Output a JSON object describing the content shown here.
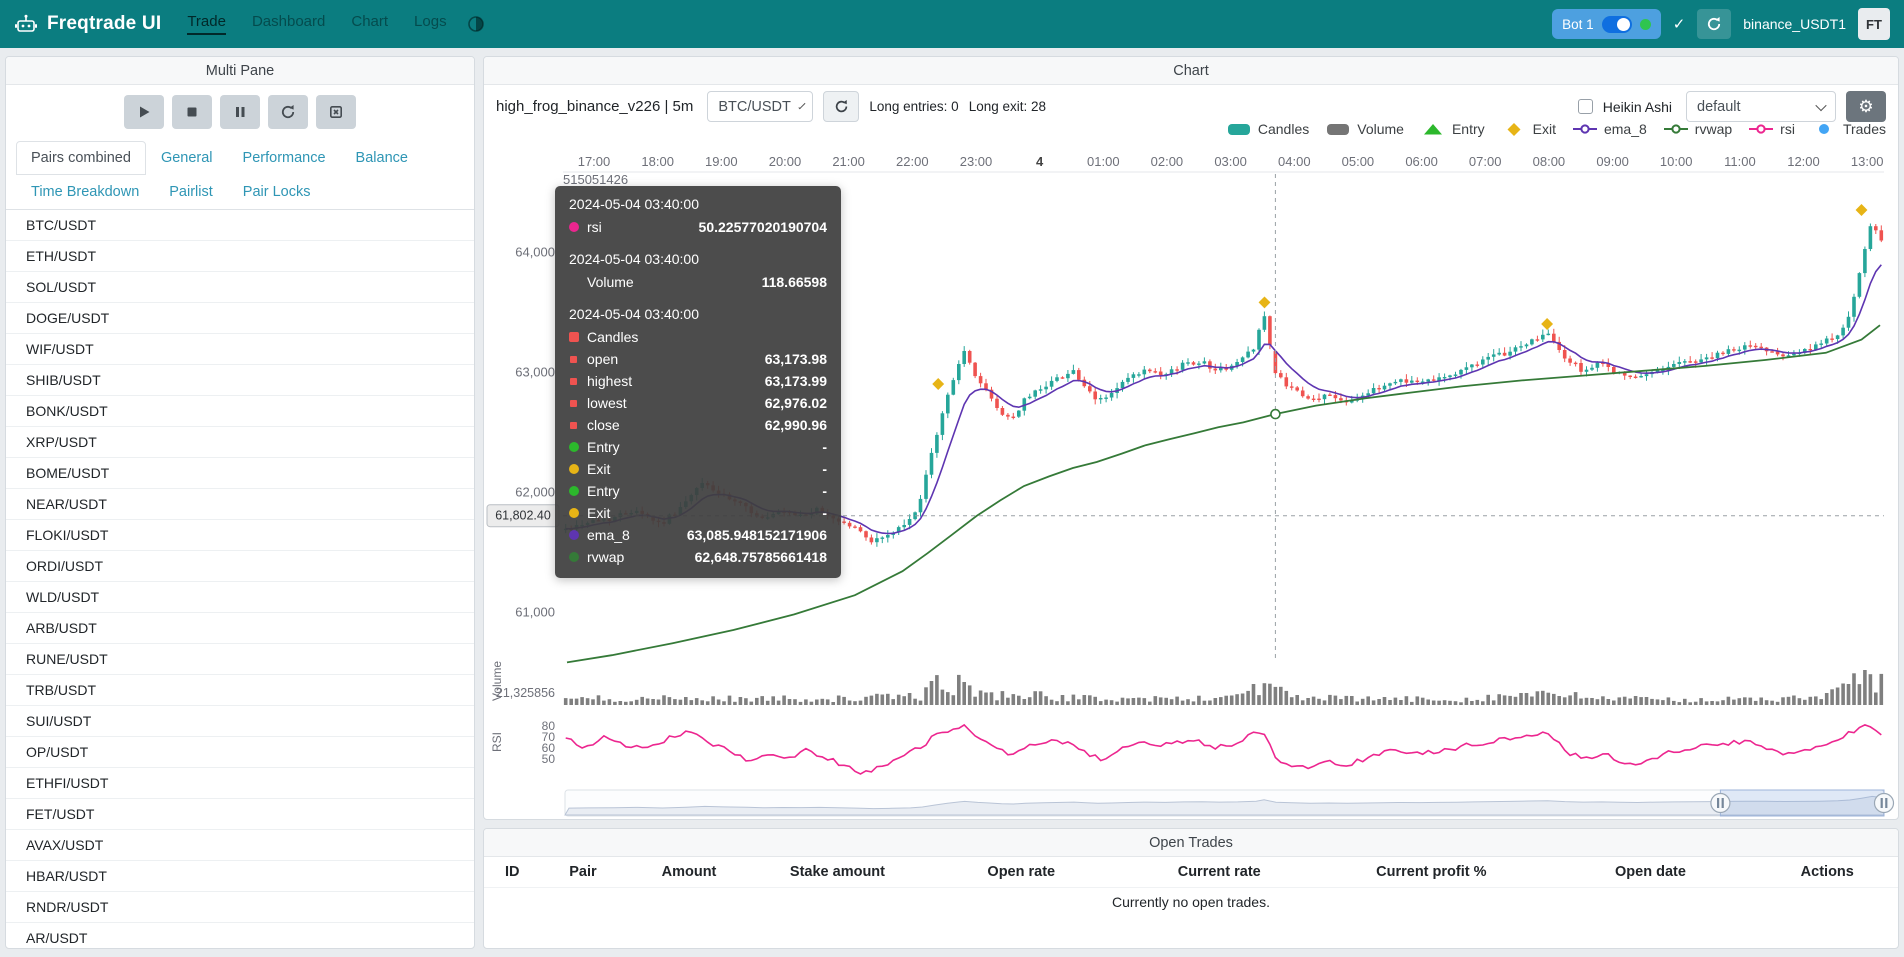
{
  "navbar": {
    "brand": "Freqtrade UI",
    "items": [
      {
        "label": "Trade",
        "active": true
      },
      {
        "label": "Dashboard",
        "active": false
      },
      {
        "label": "Chart",
        "active": false
      },
      {
        "label": "Logs",
        "active": false
      }
    ],
    "bot": {
      "name": "Bot 1",
      "online": true
    },
    "check_glyph": "✓",
    "exchange_label": "binance_USDT1",
    "avatar": "FT"
  },
  "multi_pane": {
    "title": "Multi Pane",
    "controls": [
      {
        "name": "start-bot-button",
        "icon": "play-icon"
      },
      {
        "name": "stop-bot-button",
        "icon": "stop-icon"
      },
      {
        "name": "pause-bot-button",
        "icon": "pause-icon"
      },
      {
        "name": "reload-config-button",
        "icon": "reload-icon"
      },
      {
        "name": "forceexit-button",
        "icon": "forceexit-icon"
      }
    ],
    "tabs": [
      {
        "label": "Pairs combined",
        "active": true
      },
      {
        "label": "General",
        "active": false
      },
      {
        "label": "Performance",
        "active": false
      },
      {
        "label": "Balance",
        "active": false
      },
      {
        "label": "Time Breakdown",
        "active": false
      },
      {
        "label": "Pairlist",
        "active": false
      },
      {
        "label": "Pair Locks",
        "active": false
      }
    ],
    "pairs": [
      "BTC/USDT",
      "ETH/USDT",
      "SOL/USDT",
      "DOGE/USDT",
      "WIF/USDT",
      "SHIB/USDT",
      "BONK/USDT",
      "XRP/USDT",
      "BOME/USDT",
      "NEAR/USDT",
      "FLOKI/USDT",
      "ORDI/USDT",
      "WLD/USDT",
      "ARB/USDT",
      "RUNE/USDT",
      "TRB/USDT",
      "SUI/USDT",
      "OP/USDT",
      "ETHFI/USDT",
      "FET/USDT",
      "AVAX/USDT",
      "HBAR/USDT",
      "RNDR/USDT",
      "AR/USDT"
    ]
  },
  "chart_panel": {
    "title": "Chart",
    "strategy_label": "high_frog_binance_v226 | 5m",
    "pair_select": "BTC/USDT",
    "entries_text": "Long entries: 0",
    "exits_text": "Long exit: 28",
    "heikin_ashi_label": "Heikin Ashi",
    "plot_config_select": "default",
    "gear_glyph": "⚙",
    "legend": [
      {
        "name": "Candles",
        "icon": "roundrect",
        "color": "#26a69a"
      },
      {
        "name": "Volume",
        "icon": "roundrect",
        "color": "#757575"
      },
      {
        "name": "Entry",
        "icon": "triangle",
        "color": "#2cb82c"
      },
      {
        "name": "Exit",
        "icon": "diamond",
        "color": "#e7b416"
      },
      {
        "name": "ema_8",
        "icon": "line-circle",
        "color": "#5e35b1"
      },
      {
        "name": "rvwap",
        "icon": "line-circle",
        "color": "#357a38"
      },
      {
        "name": "rsi",
        "icon": "line-circle",
        "color": "#ec268f"
      },
      {
        "name": "Trades",
        "icon": "circle",
        "color": "#42a5f5"
      }
    ]
  },
  "tooltip": {
    "sections": [
      {
        "time": "2024-05-04 03:40:00",
        "rows": [
          {
            "marker": "circle",
            "color": "#ec268f",
            "label": "rsi",
            "value": "50.22577020190704"
          }
        ]
      },
      {
        "time": "2024-05-04 03:40:00",
        "rows": [
          {
            "marker": "none",
            "color": "",
            "label": "Volume",
            "value": "118.66598"
          }
        ]
      },
      {
        "time": "2024-05-04 03:40:00",
        "rows": [
          {
            "marker": "square",
            "color": "#ef5350",
            "label": "Candles",
            "value": ""
          },
          {
            "marker": "dot",
            "color": "#ef5350",
            "label": "open",
            "value": "63,173.98"
          },
          {
            "marker": "dot",
            "color": "#ef5350",
            "label": "highest",
            "value": "63,173.99"
          },
          {
            "marker": "dot",
            "color": "#ef5350",
            "label": "lowest",
            "value": "62,976.02"
          },
          {
            "marker": "dot",
            "color": "#ef5350",
            "label": "close",
            "value": "62,990.96"
          },
          {
            "marker": "circle",
            "color": "#2cb82c",
            "label": "Entry",
            "value": "-"
          },
          {
            "marker": "circle",
            "color": "#e7b416",
            "label": "Exit",
            "value": "-"
          },
          {
            "marker": "circle",
            "color": "#2cb82c",
            "label": "Entry",
            "value": "-"
          },
          {
            "marker": "circle",
            "color": "#e7b416",
            "label": "Exit",
            "value": "-"
          },
          {
            "marker": "circle",
            "color": "#5e35b1",
            "label": "ema_8",
            "value": "63,085.948152171906"
          },
          {
            "marker": "circle",
            "color": "#357a38",
            "label": "rvwap",
            "value": "62,648.75785661418"
          }
        ]
      }
    ]
  },
  "chart_data": {
    "type": "candlestick+volume+rsi",
    "x_axis_labels": [
      "17:00",
      "18:00",
      "19:00",
      "20:00",
      "21:00",
      "22:00",
      "23:00",
      "4",
      "01:00",
      "02:00",
      "03:00",
      "04:00",
      "05:00",
      "06:00",
      "07:00",
      "08:00",
      "09:00",
      "10:00",
      "11:00",
      "12:00",
      "13:00"
    ],
    "y_axis_top_label": "515051426",
    "y_axis_price": [
      {
        "label": "64,000",
        "value": 64000
      },
      {
        "label": "63,000",
        "value": 63000
      },
      {
        "label": "62,000",
        "value": 62000
      },
      {
        "label": "61,000",
        "value": 61000
      }
    ],
    "volume_axis_label": "21,325856",
    "volume_pane_label": "Volume",
    "rsi_pane_label": "RSI",
    "rsi_ticks": [
      "80",
      "70",
      "60",
      "50"
    ],
    "candle_count": 242,
    "colors": {
      "up": "#26a69a",
      "down": "#ef5350",
      "ema": "#5e35b1",
      "rvwap": "#357a38",
      "rsi": "#ec268f",
      "volume": "#7f7f7f",
      "exit": "#e7b416"
    },
    "close_keypoints": [
      [
        0.003,
        61690
      ],
      [
        0.018,
        61750
      ],
      [
        0.037,
        61780
      ],
      [
        0.055,
        61860
      ],
      [
        0.074,
        61730
      ],
      [
        0.092,
        61900
      ],
      [
        0.106,
        62080
      ],
      [
        0.12,
        61970
      ],
      [
        0.138,
        61870
      ],
      [
        0.152,
        61770
      ],
      [
        0.165,
        61830
      ],
      [
        0.179,
        61800
      ],
      [
        0.193,
        61850
      ],
      [
        0.207,
        61770
      ],
      [
        0.221,
        61700
      ],
      [
        0.234,
        61590
      ],
      [
        0.248,
        61650
      ],
      [
        0.262,
        61750
      ],
      [
        0.271,
        61950
      ],
      [
        0.28,
        62360
      ],
      [
        0.29,
        62760
      ],
      [
        0.299,
        63070
      ],
      [
        0.303,
        63170
      ],
      [
        0.313,
        62960
      ],
      [
        0.322,
        62810
      ],
      [
        0.331,
        62660
      ],
      [
        0.34,
        62610
      ],
      [
        0.349,
        62760
      ],
      [
        0.363,
        62880
      ],
      [
        0.377,
        62960
      ],
      [
        0.386,
        63020
      ],
      [
        0.395,
        62860
      ],
      [
        0.404,
        62760
      ],
      [
        0.414,
        62810
      ],
      [
        0.427,
        62940
      ],
      [
        0.441,
        63010
      ],
      [
        0.455,
        62960
      ],
      [
        0.469,
        63070
      ],
      [
        0.483,
        63090
      ],
      [
        0.496,
        63010
      ],
      [
        0.51,
        63070
      ],
      [
        0.524,
        63220
      ],
      [
        0.53,
        63520
      ],
      [
        0.539,
        62991
      ],
      [
        0.551,
        62860
      ],
      [
        0.565,
        62760
      ],
      [
        0.579,
        62810
      ],
      [
        0.593,
        62760
      ],
      [
        0.607,
        62810
      ],
      [
        0.62,
        62880
      ],
      [
        0.634,
        62940
      ],
      [
        0.648,
        62910
      ],
      [
        0.662,
        62960
      ],
      [
        0.676,
        62980
      ],
      [
        0.689,
        63070
      ],
      [
        0.703,
        63120
      ],
      [
        0.717,
        63170
      ],
      [
        0.731,
        63250
      ],
      [
        0.745,
        63320
      ],
      [
        0.758,
        63120
      ],
      [
        0.772,
        63010
      ],
      [
        0.786,
        63070
      ],
      [
        0.8,
        62980
      ],
      [
        0.813,
        62940
      ],
      [
        0.827,
        63010
      ],
      [
        0.841,
        63070
      ],
      [
        0.855,
        63090
      ],
      [
        0.868,
        63120
      ],
      [
        0.882,
        63170
      ],
      [
        0.896,
        63220
      ],
      [
        0.91,
        63190
      ],
      [
        0.924,
        63150
      ],
      [
        0.938,
        63170
      ],
      [
        0.951,
        63220
      ],
      [
        0.965,
        63320
      ],
      [
        0.974,
        63470
      ],
      [
        0.983,
        63880
      ],
      [
        0.991,
        64280
      ],
      [
        0.997,
        64080
      ]
    ],
    "rvwap_keypoints": [
      [
        0.003,
        60580
      ],
      [
        0.037,
        60640
      ],
      [
        0.083,
        60740
      ],
      [
        0.129,
        60850
      ],
      [
        0.175,
        60980
      ],
      [
        0.221,
        61140
      ],
      [
        0.239,
        61240
      ],
      [
        0.257,
        61340
      ],
      [
        0.276,
        61490
      ],
      [
        0.294,
        61640
      ],
      [
        0.313,
        61800
      ],
      [
        0.331,
        61930
      ],
      [
        0.349,
        62050
      ],
      [
        0.368,
        62130
      ],
      [
        0.386,
        62200
      ],
      [
        0.404,
        62250
      ],
      [
        0.423,
        62320
      ],
      [
        0.441,
        62390
      ],
      [
        0.459,
        62440
      ],
      [
        0.478,
        62490
      ],
      [
        0.496,
        62540
      ],
      [
        0.515,
        62580
      ],
      [
        0.539,
        62648.76
      ],
      [
        0.57,
        62720
      ],
      [
        0.607,
        62780
      ],
      [
        0.643,
        62830
      ],
      [
        0.68,
        62880
      ],
      [
        0.726,
        62930
      ],
      [
        0.772,
        62970
      ],
      [
        0.818,
        63010
      ],
      [
        0.864,
        63050
      ],
      [
        0.91,
        63100
      ],
      [
        0.956,
        63160
      ],
      [
        0.983,
        63270
      ],
      [
        0.997,
        63390
      ]
    ],
    "rsi_keypoints": [
      [
        0.003,
        68
      ],
      [
        0.018,
        60
      ],
      [
        0.032,
        70
      ],
      [
        0.046,
        64
      ],
      [
        0.06,
        58
      ],
      [
        0.074,
        66
      ],
      [
        0.087,
        72
      ],
      [
        0.101,
        74
      ],
      [
        0.115,
        62
      ],
      [
        0.129,
        55
      ],
      [
        0.142,
        48
      ],
      [
        0.156,
        55
      ],
      [
        0.17,
        50
      ],
      [
        0.184,
        58
      ],
      [
        0.198,
        52
      ],
      [
        0.211,
        45
      ],
      [
        0.225,
        38
      ],
      [
        0.239,
        42
      ],
      [
        0.253,
        50
      ],
      [
        0.267,
        58
      ],
      [
        0.28,
        70
      ],
      [
        0.294,
        78
      ],
      [
        0.303,
        80
      ],
      [
        0.313,
        72
      ],
      [
        0.326,
        60
      ],
      [
        0.34,
        52
      ],
      [
        0.354,
        62
      ],
      [
        0.368,
        68
      ],
      [
        0.381,
        64
      ],
      [
        0.395,
        55
      ],
      [
        0.409,
        50
      ],
      [
        0.423,
        58
      ],
      [
        0.437,
        64
      ],
      [
        0.45,
        60
      ],
      [
        0.464,
        66
      ],
      [
        0.478,
        68
      ],
      [
        0.492,
        60
      ],
      [
        0.506,
        64
      ],
      [
        0.519,
        70
      ],
      [
        0.53,
        76
      ],
      [
        0.539,
        50.23
      ],
      [
        0.551,
        45
      ],
      [
        0.565,
        40
      ],
      [
        0.579,
        48
      ],
      [
        0.593,
        44
      ],
      [
        0.607,
        50
      ],
      [
        0.62,
        55
      ],
      [
        0.634,
        58
      ],
      [
        0.648,
        54
      ],
      [
        0.662,
        58
      ],
      [
        0.676,
        60
      ],
      [
        0.689,
        64
      ],
      [
        0.703,
        66
      ],
      [
        0.717,
        68
      ],
      [
        0.731,
        72
      ],
      [
        0.745,
        74
      ],
      [
        0.758,
        58
      ],
      [
        0.772,
        50
      ],
      [
        0.786,
        55
      ],
      [
        0.8,
        48
      ],
      [
        0.813,
        45
      ],
      [
        0.827,
        52
      ],
      [
        0.841,
        58
      ],
      [
        0.855,
        60
      ],
      [
        0.868,
        62
      ],
      [
        0.882,
        64
      ],
      [
        0.896,
        66
      ],
      [
        0.91,
        60
      ],
      [
        0.924,
        55
      ],
      [
        0.938,
        58
      ],
      [
        0.951,
        62
      ],
      [
        0.965,
        68
      ],
      [
        0.974,
        74
      ],
      [
        0.983,
        80
      ],
      [
        0.991,
        78
      ],
      [
        0.997,
        74
      ]
    ],
    "volume_envelope": [
      [
        0.003,
        8
      ],
      [
        0.129,
        8
      ],
      [
        0.221,
        8
      ],
      [
        0.271,
        12
      ],
      [
        0.285,
        28
      ],
      [
        0.303,
        25
      ],
      [
        0.322,
        12
      ],
      [
        0.349,
        14
      ],
      [
        0.368,
        10
      ],
      [
        0.404,
        8
      ],
      [
        0.496,
        8
      ],
      [
        0.524,
        22
      ],
      [
        0.533,
        25
      ],
      [
        0.551,
        10
      ],
      [
        0.588,
        8
      ],
      [
        0.68,
        7
      ],
      [
        0.731,
        14
      ],
      [
        0.749,
        12
      ],
      [
        0.818,
        7
      ],
      [
        0.91,
        7
      ],
      [
        0.956,
        10
      ],
      [
        0.97,
        25
      ],
      [
        0.983,
        30
      ],
      [
        0.997,
        28
      ]
    ],
    "exit_markers": [
      [
        0.284,
        62900
      ],
      [
        0.531,
        63580
      ],
      [
        0.745,
        63400
      ],
      [
        0.983,
        64350
      ]
    ],
    "crosshair": {
      "index": 130,
      "time": "2024-05-04 03:40:00",
      "price_value": 61802.4,
      "price_label": "61,802.40",
      "rvwap_value": 62648.75785661418,
      "ohlc": {
        "open": 63173.98,
        "high": 63173.99,
        "low": 62976.02,
        "close": 62990.96
      }
    },
    "datazoom": {
      "start_f": 0.876,
      "end_f": 1.0
    }
  },
  "open_trades": {
    "title": "Open Trades",
    "columns": [
      "ID",
      "Pair",
      "Amount",
      "Stake amount",
      "Open rate",
      "Current rate",
      "Current profit %",
      "Open date",
      "Actions"
    ],
    "empty_text": "Currently no open trades."
  }
}
